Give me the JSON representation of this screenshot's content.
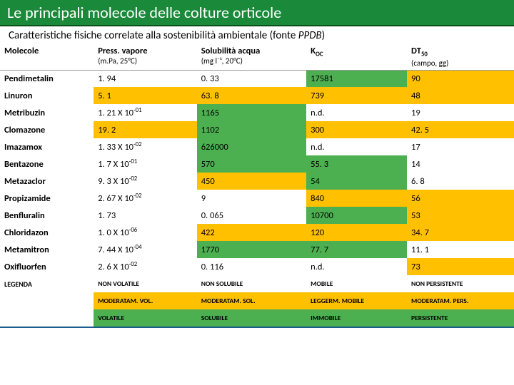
{
  "title": "Le principali molecole delle colture orticole",
  "subtitle_a": "Caratteristiche fisiche correlate alla sostenibilità ambientale (fonte ",
  "subtitle_b": "PPDB",
  "subtitle_c": ")",
  "colors": {
    "non": "#ffffff",
    "mod": "#ffc000",
    "full": "#4caf50",
    "legend_label": "#ffffff"
  },
  "columns": [
    {
      "label": "Molecole",
      "sub": ""
    },
    {
      "label": "Press. vapore",
      "sub": "(m.Pa, 25°C)"
    },
    {
      "label": "Solubilità acqua",
      "sub": "(mg l⁻¹, 20°C)"
    },
    {
      "label": "K",
      "sub_oc": "OC",
      "sub": ""
    },
    {
      "label": "DT",
      "sub_50": "50",
      "sub": "(campo, gg)"
    }
  ],
  "rows": [
    {
      "name": "Pendimetalin",
      "press": {
        "v": "1. 94",
        "c": "non"
      },
      "sol": {
        "v": "0. 33",
        "c": "non"
      },
      "koc": {
        "v": "17581",
        "c": "full"
      },
      "dt": {
        "v": "90",
        "c": "mod"
      }
    },
    {
      "name": "Linuron",
      "press": {
        "v": "5. 1",
        "c": "mod"
      },
      "sol": {
        "v": "63. 8",
        "c": "mod"
      },
      "koc": {
        "v": "739",
        "c": "mod"
      },
      "dt": {
        "v": "48",
        "c": "mod"
      }
    },
    {
      "name": "Metribuzin",
      "press": {
        "v": "1. 21 X 10⁻⁰¹",
        "c": "non"
      },
      "sol": {
        "v": "1165",
        "c": "full"
      },
      "koc": {
        "v": "n.d.",
        "c": "non"
      },
      "dt": {
        "v": "19",
        "c": "non"
      }
    },
    {
      "name": "Clomazone",
      "press": {
        "v": "19. 2",
        "c": "mod"
      },
      "sol": {
        "v": "1102",
        "c": "full"
      },
      "koc": {
        "v": "300",
        "c": "mod"
      },
      "dt": {
        "v": "42. 5",
        "c": "mod"
      }
    },
    {
      "name": "Imazamox",
      "press": {
        "v": "1. 33 X 10⁻⁰²",
        "c": "non"
      },
      "sol": {
        "v": "626000",
        "c": "full"
      },
      "koc": {
        "v": "n.d.",
        "c": "non"
      },
      "dt": {
        "v": "17",
        "c": "non"
      }
    },
    {
      "name": "Bentazone",
      "press": {
        "v": "1. 7 X 10⁻⁰¹",
        "c": "non"
      },
      "sol": {
        "v": "570",
        "c": "full"
      },
      "koc": {
        "v": "55. 3",
        "c": "full"
      },
      "dt": {
        "v": "14",
        "c": "non"
      }
    },
    {
      "name": "Metazaclor",
      "press": {
        "v": "9. 3 X 10⁻⁰²",
        "c": "non"
      },
      "sol": {
        "v": "450",
        "c": "mod"
      },
      "koc": {
        "v": "54",
        "c": "full"
      },
      "dt": {
        "v": "6. 8",
        "c": "non"
      }
    },
    {
      "name": "Propizamide",
      "press": {
        "v": "2. 67 X 10⁻⁰²",
        "c": "non"
      },
      "sol": {
        "v": "9",
        "c": "non"
      },
      "koc": {
        "v": "840",
        "c": "mod"
      },
      "dt": {
        "v": "56",
        "c": "mod"
      }
    },
    {
      "name": "Benfluralin",
      "press": {
        "v": "1. 73",
        "c": "non"
      },
      "sol": {
        "v": "0. 065",
        "c": "non"
      },
      "koc": {
        "v": "10700",
        "c": "full"
      },
      "dt": {
        "v": "53",
        "c": "mod"
      }
    },
    {
      "name": "Chloridazon",
      "press": {
        "v": "1. 0 X 10⁻⁰⁶",
        "c": "non"
      },
      "sol": {
        "v": "422",
        "c": "mod"
      },
      "koc": {
        "v": "120",
        "c": "mod"
      },
      "dt": {
        "v": "34. 7",
        "c": "mod"
      }
    },
    {
      "name": "Metamitron",
      "press": {
        "v": "7. 44 X 10⁻⁰⁴",
        "c": "non"
      },
      "sol": {
        "v": "1770",
        "c": "full"
      },
      "koc": {
        "v": "77. 7",
        "c": "full"
      },
      "dt": {
        "v": "11. 1",
        "c": "non"
      }
    },
    {
      "name": "Oxifluorfen",
      "press": {
        "v": "2. 6 X 10⁻⁰²",
        "c": "non"
      },
      "sol": {
        "v": "0. 116",
        "c": "non"
      },
      "koc": {
        "v": "n.d.",
        "c": "non"
      },
      "dt": {
        "v": "73",
        "c": "mod"
      }
    }
  ],
  "legend": [
    {
      "label": "LEGENDA",
      "cells": [
        {
          "v": "NON VOLATILE",
          "c": "non"
        },
        {
          "v": "NON SOLUBILE",
          "c": "non"
        },
        {
          "v": "MOBILE",
          "c": "non"
        },
        {
          "v": "NON PERSISTENTE",
          "c": "non"
        }
      ]
    },
    {
      "label": "",
      "cells": [
        {
          "v": "MODERATAM. VOL.",
          "c": "mod"
        },
        {
          "v": "MODERATAM. SOL.",
          "c": "mod"
        },
        {
          "v": "LEGGERM. MOBILE",
          "c": "mod"
        },
        {
          "v": "MODERATAM. PERS.",
          "c": "mod"
        }
      ]
    },
    {
      "label": "",
      "cells": [
        {
          "v": "VOLATILE",
          "c": "full"
        },
        {
          "v": "SOLUBILE",
          "c": "full"
        },
        {
          "v": "IMMOBILE",
          "c": "full"
        },
        {
          "v": "PERSISTENTE",
          "c": "full"
        }
      ]
    }
  ]
}
